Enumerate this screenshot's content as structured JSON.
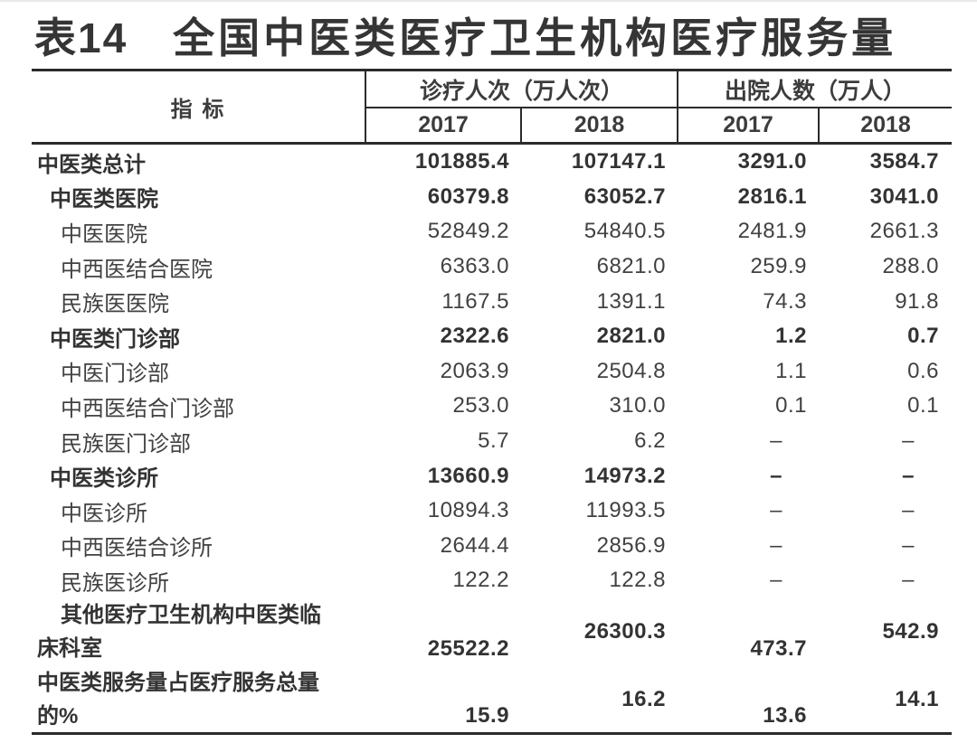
{
  "title": {
    "prefix": "表14",
    "text": "全国中医类医疗卫生机构医疗服务量"
  },
  "table": {
    "indicator_header": "指 标",
    "column_groups": [
      {
        "label": "诊疗人次（万人次）",
        "years": [
          "2017",
          "2018"
        ]
      },
      {
        "label": "出院人数（万人）",
        "years": [
          "2017",
          "2018"
        ]
      }
    ],
    "rows": [
      {
        "label": "中医类总计",
        "indent": 0,
        "bold": true,
        "values": [
          "101885.4",
          "107147.1",
          "3291.0",
          "3584.7"
        ]
      },
      {
        "label": "中医类医院",
        "indent": 1,
        "bold": true,
        "values": [
          "60379.8",
          "63052.7",
          "2816.1",
          "3041.0"
        ]
      },
      {
        "label": "中医医院",
        "indent": 2,
        "bold": false,
        "values": [
          "52849.2",
          "54840.5",
          "2481.9",
          "2661.3"
        ]
      },
      {
        "label": "中西医结合医院",
        "indent": 2,
        "bold": false,
        "values": [
          "6363.0",
          "6821.0",
          "259.9",
          "288.0"
        ]
      },
      {
        "label": "民族医医院",
        "indent": 2,
        "bold": false,
        "values": [
          "1167.5",
          "1391.1",
          "74.3",
          "91.8"
        ]
      },
      {
        "label": "中医类门诊部",
        "indent": 1,
        "bold": true,
        "values": [
          "2322.6",
          "2821.0",
          "1.2",
          "0.7"
        ]
      },
      {
        "label": "中医门诊部",
        "indent": 2,
        "bold": false,
        "values": [
          "2063.9",
          "2504.8",
          "1.1",
          "0.6"
        ]
      },
      {
        "label": "中西医结合门诊部",
        "indent": 2,
        "bold": false,
        "values": [
          "253.0",
          "310.0",
          "0.1",
          "0.1"
        ]
      },
      {
        "label": "民族医门诊部",
        "indent": 2,
        "bold": false,
        "values": [
          "5.7",
          "6.2",
          "–",
          "–"
        ]
      },
      {
        "label": "中医类诊所",
        "indent": 1,
        "bold": true,
        "values": [
          "13660.9",
          "14973.2",
          "–",
          "–"
        ]
      },
      {
        "label": "中医诊所",
        "indent": 2,
        "bold": false,
        "values": [
          "10894.3",
          "11993.5",
          "–",
          "–"
        ]
      },
      {
        "label": "中西医结合诊所",
        "indent": 2,
        "bold": false,
        "values": [
          "2644.4",
          "2856.9",
          "–",
          "–"
        ]
      },
      {
        "label": "民族医诊所",
        "indent": 2,
        "bold": false,
        "values": [
          "122.2",
          "122.8",
          "–",
          "–"
        ]
      },
      {
        "wrap": true,
        "bold": true,
        "lines": [
          "其他医疗卫生机构中医类临",
          "床科室"
        ],
        "line_indents": [
          2,
          0
        ],
        "values": [
          "25522.2",
          "26300.3",
          "473.7",
          "542.9"
        ]
      },
      {
        "wrap": true,
        "last": true,
        "bold": true,
        "lines": [
          "中医类服务量占医疗服务总量",
          "的%"
        ],
        "line_indents": [
          0,
          0
        ],
        "values": [
          "15.9",
          "16.2",
          "13.6",
          "14.1"
        ]
      }
    ]
  },
  "colors": {
    "text": "#414141",
    "bold_text": "#333333",
    "rule_line": "#2b2b2b",
    "background": "#ffffff"
  }
}
